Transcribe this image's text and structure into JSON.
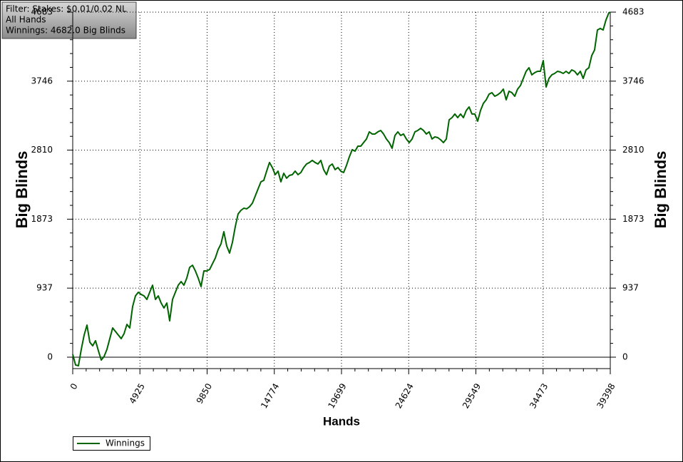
{
  "chart_data": {
    "type": "line",
    "annotations": [
      "Filter: Stakes: $0.01/0.02 NL",
      "All Hands",
      "Winnings: 4682.0 Big Blinds"
    ],
    "xlabel": "Hands",
    "ylabel": "Big Blinds",
    "xlim": [
      0,
      39398
    ],
    "ylim": [
      -155,
      4683
    ],
    "xticks": [
      0,
      4925,
      9850,
      14774,
      19699,
      24624,
      29549,
      34473,
      39398
    ],
    "yticks": [
      0,
      937,
      1873,
      2810,
      3746,
      4683
    ],
    "grid": true,
    "legend": "bottom-left",
    "x": [
      0,
      209,
      418,
      627,
      836,
      1045,
      1254,
      1463,
      1672,
      1881,
      2090,
      2299,
      2508,
      2717,
      2926,
      3135,
      3344,
      3553,
      3762,
      3971,
      4180,
      4389,
      4598,
      4807,
      5016,
      5225,
      5434,
      5643,
      5852,
      6061,
      6270,
      6479,
      6688,
      6897,
      7106,
      7315,
      7524,
      7733,
      7942,
      8151,
      8360,
      8569,
      8778,
      8987,
      9196,
      9405,
      9614,
      9823,
      10032,
      10241,
      10450,
      10659,
      10868,
      11077,
      11286,
      11495,
      11704,
      11913,
      12122,
      12331,
      12540,
      12749,
      12958,
      13167,
      13376,
      13585,
      13794,
      14003,
      14212,
      14421,
      14630,
      14839,
      15048,
      15257,
      15466,
      15675,
      15884,
      16093,
      16302,
      16511,
      16720,
      16929,
      17138,
      17347,
      17556,
      17765,
      17974,
      18183,
      18392,
      18601,
      18810,
      19019,
      19228,
      19437,
      19646,
      19855,
      20064,
      20273,
      20482,
      20691,
      20900,
      21109,
      21318,
      21527,
      21736,
      21945,
      22154,
      22363,
      22572,
      22781,
      22990,
      23199,
      23408,
      23617,
      23826,
      24035,
      24244,
      24453,
      24662,
      24871,
      25080,
      25289,
      25498,
      25707,
      25916,
      26125,
      26334,
      26543,
      26752,
      26961,
      27170,
      27379,
      27588,
      27797,
      28006,
      28215,
      28424,
      28633,
      28842,
      29051,
      29260,
      29469,
      29678,
      29887,
      30096,
      30305,
      30514,
      30723,
      30932,
      31141,
      31350,
      31559,
      31768,
      31977,
      32186,
      32395,
      32604,
      32813,
      33022,
      33231,
      33440,
      33649,
      33858,
      34067,
      34276,
      34485,
      34694,
      34903,
      35112,
      35321,
      35530,
      35739,
      35948,
      36157,
      36366,
      36575,
      36784,
      36993,
      37202,
      37411,
      37620,
      37829,
      38038,
      38247,
      38456,
      38665,
      38874,
      39083,
      39292,
      39398
    ],
    "series": [
      {
        "name": "Winnings",
        "color": "#006400",
        "values": [
          39,
          -106,
          -116,
          106,
          300,
          435,
          203,
          155,
          223,
          87,
          -39,
          10,
          106,
          252,
          397,
          348,
          300,
          252,
          319,
          445,
          397,
          687,
          832,
          881,
          852,
          832,
          784,
          881,
          977,
          784,
          832,
          735,
          668,
          735,
          493,
          784,
          881,
          977,
          1026,
          977,
          1074,
          1219,
          1248,
          1171,
          1074,
          958,
          1171,
          1171,
          1190,
          1268,
          1345,
          1461,
          1538,
          1703,
          1509,
          1413,
          1558,
          1771,
          1945,
          1993,
          2022,
          2013,
          2042,
          2090,
          2187,
          2284,
          2380,
          2400,
          2525,
          2642,
          2574,
          2477,
          2525,
          2380,
          2496,
          2429,
          2467,
          2477,
          2525,
          2477,
          2506,
          2574,
          2622,
          2642,
          2671,
          2642,
          2622,
          2671,
          2545,
          2477,
          2593,
          2622,
          2545,
          2574,
          2525,
          2506,
          2603,
          2719,
          2816,
          2796,
          2864,
          2864,
          2912,
          2961,
          3058,
          3029,
          3029,
          3058,
          3077,
          3029,
          2961,
          2912,
          2835,
          3009,
          3058,
          3009,
          3029,
          2961,
          2912,
          2961,
          3058,
          3077,
          3106,
          3077,
          3029,
          3058,
          2961,
          2990,
          2980,
          2951,
          2912,
          2961,
          3222,
          3251,
          3300,
          3251,
          3300,
          3251,
          3348,
          3396,
          3300,
          3300,
          3203,
          3348,
          3445,
          3493,
          3570,
          3590,
          3541,
          3561,
          3590,
          3638,
          3493,
          3609,
          3590,
          3541,
          3638,
          3687,
          3783,
          3880,
          3928,
          3832,
          3861,
          3880,
          3880,
          4025,
          3667,
          3783,
          3832,
          3851,
          3880,
          3870,
          3851,
          3880,
          3851,
          3899,
          3880,
          3832,
          3880,
          3783,
          3899,
          3928,
          4093,
          4170,
          4441,
          4461,
          4441,
          4577,
          4673,
          4682
        ]
      }
    ]
  }
}
